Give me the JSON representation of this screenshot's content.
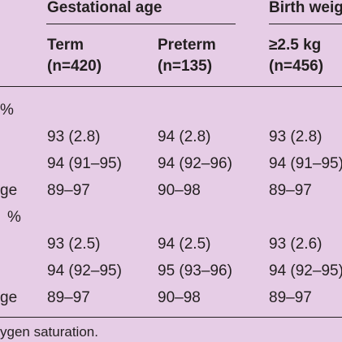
{
  "table": {
    "group_headers": {
      "gestational_age": "Gestational age",
      "birth_weight": "Birth weig"
    },
    "columns": {
      "term_label": "Term",
      "term_n": "(n=420)",
      "preterm_label": "Preterm",
      "preterm_n": "(n=135)",
      "bw_label": "≥2.5 kg",
      "bw_n": "(n=456)"
    },
    "section1": {
      "label": "%",
      "rows": [
        {
          "label": "",
          "term": "93 (2.8)",
          "preterm": "94 (2.8)",
          "bw": "93 (2.8)"
        },
        {
          "label": "",
          "term": "94 (91–95)",
          "preterm": "94 (92–96)",
          "bw": "94 (91–95)"
        },
        {
          "label": "ge",
          "term": "89–97",
          "preterm": "90–98",
          "bw": "89–97"
        }
      ]
    },
    "section2": {
      "label": "%",
      "rows": [
        {
          "label": "",
          "term": "93 (2.5)",
          "preterm": "94 (2.5)",
          "bw": "93 (2.6)"
        },
        {
          "label": "",
          "term": "94 (92–95)",
          "preterm": "95 (93–96)",
          "bw": "94 (92–95)"
        },
        {
          "label": "ge",
          "term": "89–97",
          "preterm": "90–98",
          "bw": "89–97"
        }
      ]
    },
    "footnote": "ygen saturation."
  }
}
